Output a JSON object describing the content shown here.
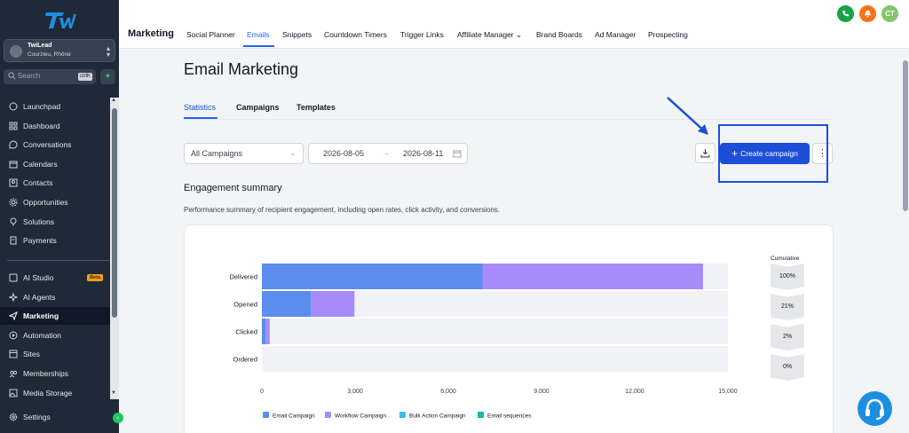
{
  "account": {
    "name": "TwiLead",
    "location": "Courzieu, Rhône"
  },
  "search": {
    "placeholder": "Search",
    "shortcut": "ctrlK"
  },
  "sidebar": {
    "items": [
      {
        "label": "Launchpad",
        "icon": "rocket-icon"
      },
      {
        "label": "Dashboard",
        "icon": "grid-icon"
      },
      {
        "label": "Conversations",
        "icon": "chat-icon"
      },
      {
        "label": "Calendars",
        "icon": "calendar-icon"
      },
      {
        "label": "Contacts",
        "icon": "contact-icon"
      },
      {
        "label": "Opportunities",
        "icon": "opportunity-icon"
      },
      {
        "label": "Solutions",
        "icon": "lightbulb-icon"
      },
      {
        "label": "Payments",
        "icon": "payments-icon"
      },
      {
        "label": "AI Studio",
        "icon": "ai-studio-icon",
        "badge": "Beta"
      },
      {
        "label": "AI Agents",
        "icon": "sparkles-icon"
      },
      {
        "label": "Marketing",
        "icon": "send-icon",
        "active": true
      },
      {
        "label": "Automation",
        "icon": "automation-icon"
      },
      {
        "label": "Sites",
        "icon": "globe-icon"
      },
      {
        "label": "Memberships",
        "icon": "members-icon"
      },
      {
        "label": "Media Storage",
        "icon": "image-icon"
      },
      {
        "label": "Settings",
        "icon": "gear-icon"
      }
    ]
  },
  "topbar": {
    "title": "Marketing",
    "tabs": [
      "Social Planner",
      "Emails",
      "Snippets",
      "Countdown Timers",
      "Trigger Links",
      "Affiliate Manager",
      "Brand Boards",
      "Ad Manager",
      "Prospecting"
    ],
    "active_tab": "Emails",
    "avatar_initials": "CT",
    "colors": {
      "phone": "#16a34a",
      "bell": "#f97316",
      "avatar": "#86c46b"
    }
  },
  "page": {
    "title": "Email Marketing",
    "subtabs": [
      "Statistics",
      "Campaigns",
      "Templates"
    ],
    "filter": {
      "selected": "All Campaigns"
    },
    "date_from": "2026-08-05",
    "date_to": "2026-08-11",
    "create_label": "Create campaign",
    "section_title": "Engagement summary",
    "section_desc": "Performance summary of recipient engagement, including open rates, click activity, and conversions.",
    "cumulative_title": "Cumulative"
  },
  "chart_data": {
    "type": "bar",
    "orientation": "horizontal",
    "stacked": true,
    "categories": [
      "Delivered",
      "Opened",
      "Clicked",
      "Ordered"
    ],
    "series": [
      {
        "name": "Email Campaign",
        "color": "#5b8def",
        "values": [
          7100,
          1580,
          120,
          0
        ]
      },
      {
        "name": "Workflow Campaign",
        "color": "#a78bfa",
        "values": [
          7100,
          1400,
          130,
          0
        ]
      },
      {
        "name": "Bulk Action Campaign",
        "color": "#38bdf8",
        "values": [
          0,
          0,
          0,
          0
        ]
      },
      {
        "name": "Email sequences",
        "color": "#14b8a6",
        "values": [
          0,
          0,
          0,
          0
        ]
      }
    ],
    "xlim": [
      0,
      15000
    ],
    "xticks": [
      "0",
      "3,000",
      "6,000",
      "9,000",
      "12,000",
      "15,000"
    ],
    "cumulative": [
      "100%",
      "21%",
      "2%",
      "0%"
    ],
    "legend": "bottom"
  }
}
